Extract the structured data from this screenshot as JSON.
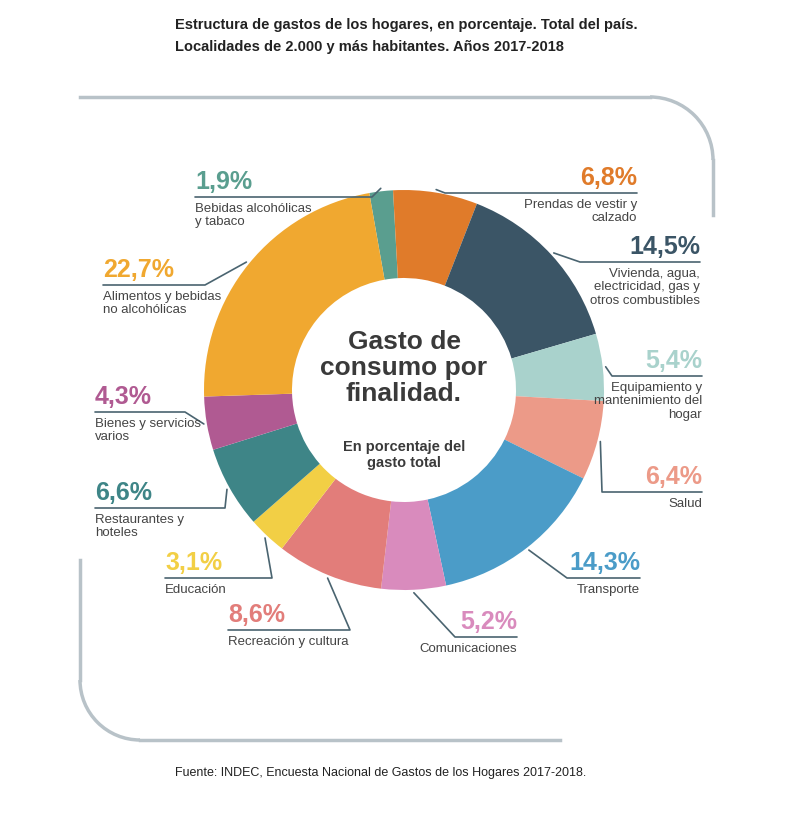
{
  "chart_data": {
    "type": "donut",
    "title": "Estructura de gastos de los hogares, en porcentaje. Total del país.",
    "subtitle": "Localidades de 2.000 y más habitantes. Años 2017-2018",
    "center_title": "Gasto de consumo por finalidad.",
    "center_subtitle": "En porcentaje del gasto total",
    "source": "Fuente: INDEC, Encuesta Nacional de Gastos de los Hogares 2017-2018.",
    "categories": [
      "Bebidas alcohólicas y tabaco",
      "Prendas de vestir y calzado",
      "Vivienda, agua, electricidad, gas y otros combustibles",
      "Equipamiento y mantenimiento del hogar",
      "Salud",
      "Transporte",
      "Comunicaciones",
      "Recreación y cultura",
      "Educación",
      "Restaurantes y hoteles",
      "Bienes y servicios varios",
      "Alimentos y bebidas no alcohólicas"
    ],
    "values": [
      1.9,
      6.8,
      14.5,
      5.4,
      6.4,
      14.3,
      5.2,
      8.6,
      3.1,
      6.6,
      4.3,
      22.7
    ],
    "value_labels": [
      "1,9%",
      "6,8%",
      "14,5%",
      "5,4%",
      "6,4%",
      "14,3%",
      "5,2%",
      "8,6%",
      "3,1%",
      "6,6%",
      "4,3%",
      "22,7%"
    ],
    "colors": [
      "#5a9e8f",
      "#e07b2a",
      "#3b5566",
      "#a9d2cc",
      "#ec9a88",
      "#4b9cc8",
      "#d98bbd",
      "#e27d7a",
      "#f2cf45",
      "#3e8587",
      "#b05a92",
      "#f0a830"
    ],
    "data_labels": true
  }
}
